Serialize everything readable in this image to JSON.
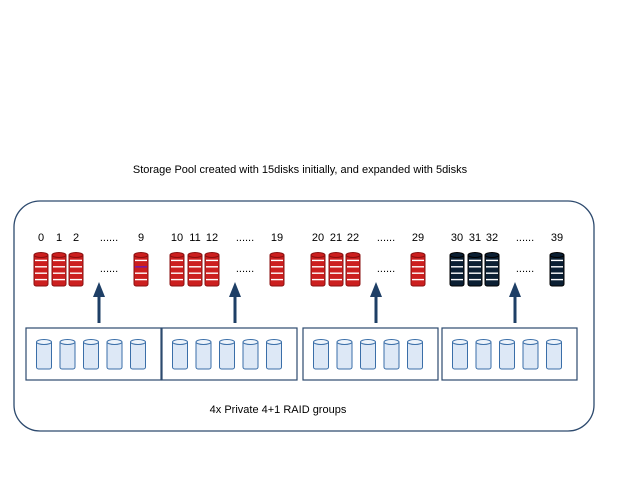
{
  "title": "Storage Pool created with 15disks initially, and expanded with 5disks",
  "footer": "4x Private 4+1 RAID groups",
  "colors": {
    "frame": "#2d4a6e",
    "arrow": "#1e3f66",
    "disk_red": "#cc1f1f",
    "disk_red_dark": "#8a1010",
    "disk_black": "#0b1f33",
    "disk_blue_fill": "#dde8f6",
    "disk_blue_stroke": "#3a6ea8",
    "special_disk_band": "#7a1aa0"
  },
  "groups": [
    {
      "name": "group-1",
      "labels": [
        "0",
        "1",
        "2",
        "......",
        "9"
      ],
      "disk_color": "red",
      "dots": "......"
    },
    {
      "name": "group-2",
      "labels": [
        "10",
        "11",
        "12",
        "......",
        "19"
      ],
      "disk_color": "red",
      "dots": "......"
    },
    {
      "name": "group-3",
      "labels": [
        "20",
        "21",
        "22",
        "......",
        "29"
      ],
      "disk_color": "red",
      "dots": "......"
    },
    {
      "name": "group-4",
      "labels": [
        "30",
        "31",
        "32",
        "......",
        "39"
      ],
      "disk_color": "black",
      "dots": "......"
    }
  ],
  "raid_disks_per_group": 5
}
